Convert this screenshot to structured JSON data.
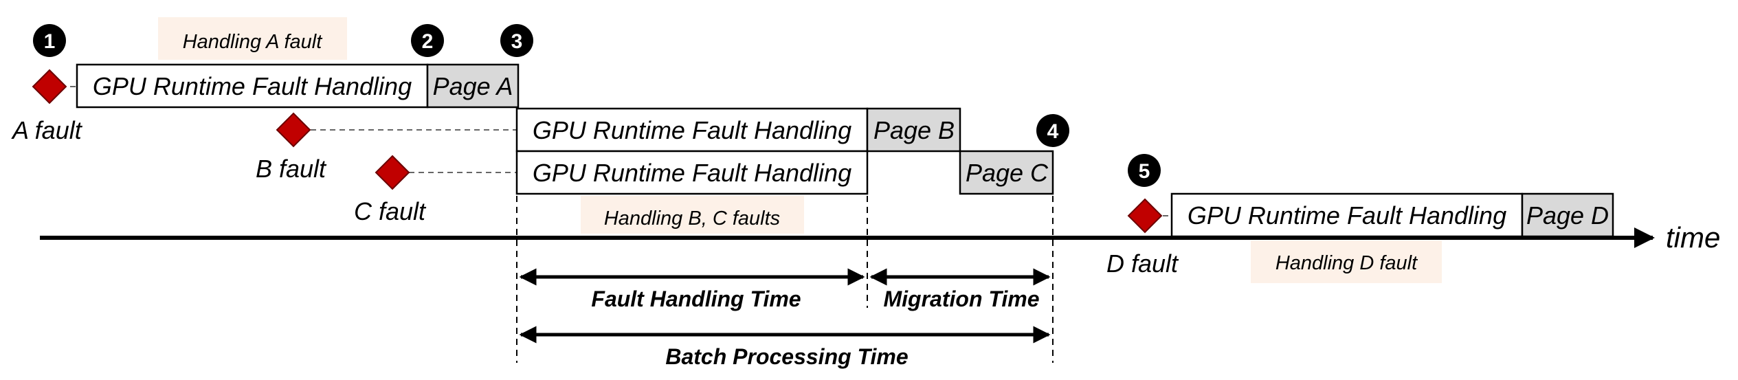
{
  "colors": {
    "fault_marker": "#c00000",
    "page_box": "#d9d9d9",
    "handling_note_bg": "#fdf1e8",
    "circle": "#000000",
    "stroke": "#000000"
  },
  "markers": {
    "one": "1",
    "two": "2",
    "three": "3",
    "four": "4",
    "five": "5"
  },
  "faults": {
    "a": "A fault",
    "b": "B fault",
    "c": "C fault",
    "d": "D fault"
  },
  "handling_notes": {
    "a": "Handling A fault",
    "bc": "Handling B, C faults",
    "d": "Handling D fault"
  },
  "boxes": {
    "handling_label": "GPU Runtime Fault Handling",
    "page_a": "Page A",
    "page_b": "Page B",
    "page_c": "Page C",
    "page_d": "Page D"
  },
  "axis": {
    "label": "time"
  },
  "spans": {
    "fault_handling": "Fault Handling Time",
    "migration": "Migration Time",
    "batch_processing": "Batch Processing Time"
  }
}
